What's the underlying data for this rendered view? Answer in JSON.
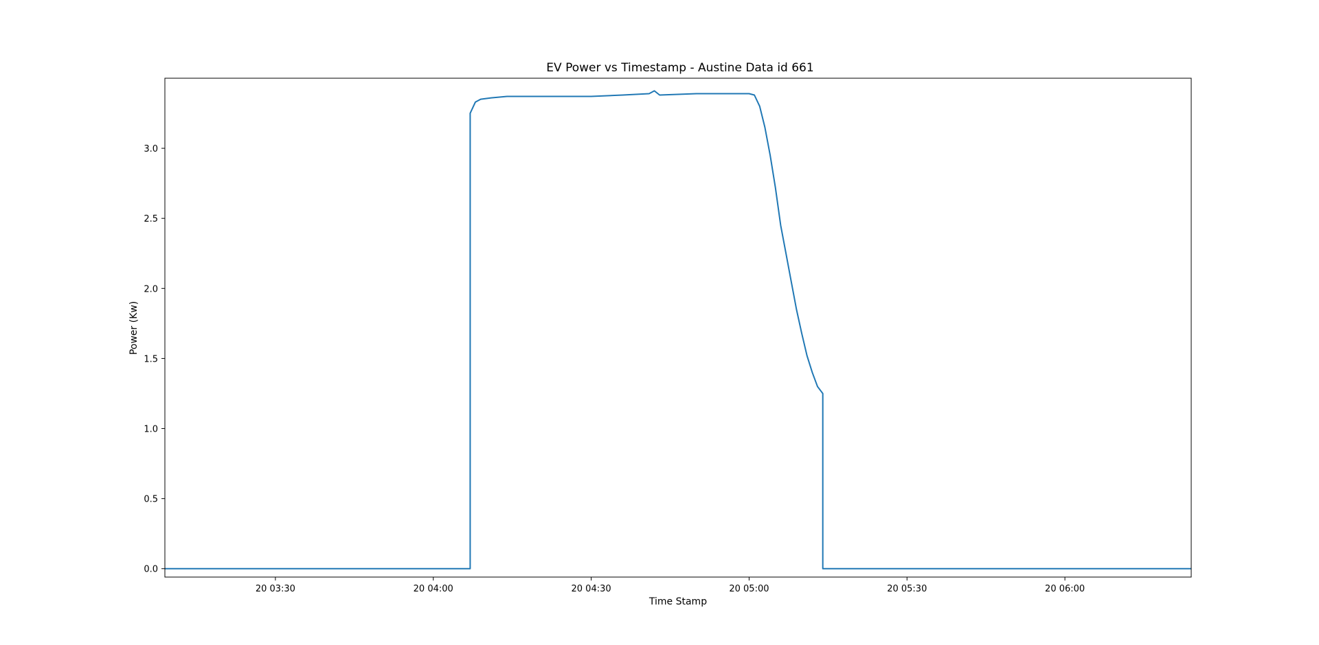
{
  "chart_data": {
    "type": "line",
    "title": "EV Power vs Timestamp - Austine Data id 661",
    "xlabel": "Time Stamp",
    "ylabel": "Power (Kw)",
    "x_axis_kind": "time",
    "xlim": [
      "20 03:09",
      "20 06:24"
    ],
    "ylim": [
      -0.06,
      3.5
    ],
    "grid": false,
    "legend": "none",
    "line_color": "#1f77b4",
    "x_ticks": [
      {
        "t": "20 03:30",
        "label": "20 03:30"
      },
      {
        "t": "20 04:00",
        "label": "20 04:00"
      },
      {
        "t": "20 04:30",
        "label": "20 04:30"
      },
      {
        "t": "20 05:00",
        "label": "20 05:00"
      },
      {
        "t": "20 05:30",
        "label": "20 05:30"
      },
      {
        "t": "20 06:00",
        "label": "20 06:00"
      }
    ],
    "y_ticks": [
      {
        "v": 0.0,
        "label": "0.0"
      },
      {
        "v": 0.5,
        "label": "0.5"
      },
      {
        "v": 1.0,
        "label": "1.0"
      },
      {
        "v": 1.5,
        "label": "1.5"
      },
      {
        "v": 2.0,
        "label": "2.0"
      },
      {
        "v": 2.5,
        "label": "2.5"
      },
      {
        "v": 3.0,
        "label": "3.0"
      }
    ],
    "series": [
      {
        "points": [
          [
            "20 03:09",
            0.0
          ],
          [
            "20 04:07",
            0.0
          ],
          [
            "20 04:07",
            0.15
          ],
          [
            "20 04:07",
            3.25
          ],
          [
            "20 04:08",
            3.33
          ],
          [
            "20 04:09",
            3.35
          ],
          [
            "20 04:11",
            3.36
          ],
          [
            "20 04:14",
            3.37
          ],
          [
            "20 04:20",
            3.37
          ],
          [
            "20 04:30",
            3.37
          ],
          [
            "20 04:36",
            3.38
          ],
          [
            "20 04:41",
            3.39
          ],
          [
            "20 04:42",
            3.41
          ],
          [
            "20 04:43",
            3.38
          ],
          [
            "20 04:50",
            3.39
          ],
          [
            "20 05:00",
            3.39
          ],
          [
            "20 05:01",
            3.38
          ],
          [
            "20 05:02",
            3.3
          ],
          [
            "20 05:03",
            3.15
          ],
          [
            "20 05:04",
            2.95
          ],
          [
            "20 05:05",
            2.72
          ],
          [
            "20 05:06",
            2.45
          ],
          [
            "20 05:07",
            2.25
          ],
          [
            "20 05:08",
            2.05
          ],
          [
            "20 05:09",
            1.85
          ],
          [
            "20 05:10",
            1.68
          ],
          [
            "20 05:11",
            1.52
          ],
          [
            "20 05:12",
            1.4
          ],
          [
            "20 05:13",
            1.3
          ],
          [
            "20 05:14",
            1.25
          ],
          [
            "20 05:14",
            0.2
          ],
          [
            "20 05:14",
            0.0
          ],
          [
            "20 06:24",
            0.0
          ]
        ]
      }
    ]
  }
}
